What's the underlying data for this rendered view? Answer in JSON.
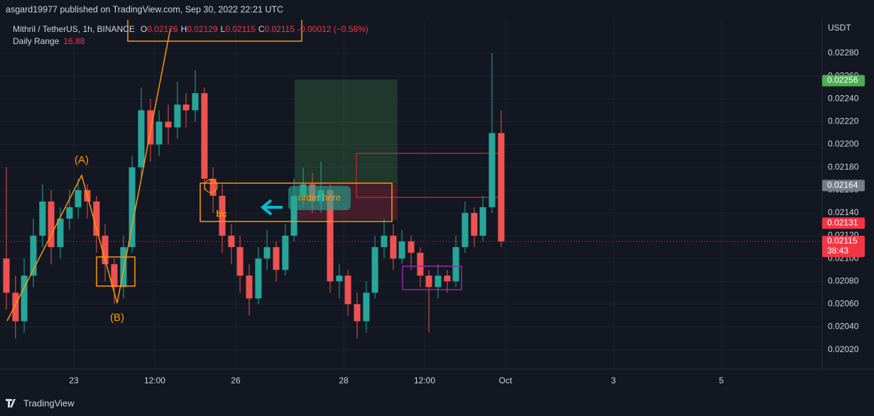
{
  "header": {
    "published": "asgard19977 published on TradingView.com, Sep 30, 2022 22:21 UTC"
  },
  "footer": {
    "brand": "TradingView"
  },
  "chart_data": {
    "type": "candlestick",
    "symbol": "Mithril / TetherUS, 1h, BINANCE",
    "ohlc_legend": [
      {
        "label": "O",
        "value": 0.02126
      },
      {
        "label": "H",
        "value": 0.02129
      },
      {
        "label": "L",
        "value": 0.02115
      },
      {
        "label": "C",
        "value": 0.02115
      }
    ],
    "change": "-0.00012 (−0.56%)",
    "indicator": {
      "name": "Daily Range",
      "value": 16.88
    },
    "currency": "USDT",
    "annotations": [
      "(A)",
      "(B)",
      "bc",
      "order here"
    ],
    "up_color": "#26a69a",
    "down_color": "#ef5350",
    "x": [
      21.75,
      21.92,
      22.08,
      22.25,
      22.42,
      22.58,
      22.75,
      22.92,
      23.08,
      23.25,
      23.42,
      23.58,
      23.75,
      23.92,
      24.08,
      24.25,
      24.42,
      24.58,
      24.75,
      24.92,
      25.08,
      25.25,
      25.42,
      25.58,
      25.75,
      25.92,
      26.08,
      26.25,
      26.42,
      26.58,
      26.75,
      26.92,
      27.08,
      27.25,
      27.42,
      27.58,
      27.75,
      27.92,
      28.08,
      28.25,
      28.42,
      28.58,
      28.75,
      28.92,
      29.08,
      29.25,
      29.42,
      29.58,
      29.75,
      29.92,
      30.08,
      30.25,
      30.42,
      30.58,
      30.75,
      30.92
    ],
    "open": [
      0.021,
      0.0207,
      0.02045,
      0.02085,
      0.0212,
      0.0215,
      0.0211,
      0.02135,
      0.02145,
      0.0216,
      0.0215,
      0.0212,
      0.02095,
      0.02075,
      0.0211,
      0.0218,
      0.0223,
      0.022,
      0.0222,
      0.02215,
      0.02235,
      0.0223,
      0.02245,
      0.0217,
      0.02155,
      0.0212,
      0.0211,
      0.02085,
      0.02065,
      0.021,
      0.0211,
      0.0209,
      0.0212,
      0.02155,
      0.02165,
      0.0215,
      0.0216,
      0.0208,
      0.02085,
      0.0206,
      0.02045,
      0.0207,
      0.0211,
      0.0212,
      0.021,
      0.02115,
      0.02105,
      0.02085,
      0.02075,
      0.02085,
      0.0208,
      0.0211,
      0.0214,
      0.0212,
      0.02145,
      0.0221
    ],
    "high": [
      0.0218,
      0.02085,
      0.021,
      0.02135,
      0.02165,
      0.0216,
      0.02145,
      0.0216,
      0.0217,
      0.02165,
      0.02155,
      0.0213,
      0.021,
      0.0212,
      0.0219,
      0.0225,
      0.0224,
      0.0223,
      0.02235,
      0.02255,
      0.02245,
      0.02265,
      0.0225,
      0.0218,
      0.02165,
      0.0213,
      0.0212,
      0.02095,
      0.0211,
      0.02125,
      0.02115,
      0.0213,
      0.0217,
      0.0218,
      0.02175,
      0.02185,
      0.02165,
      0.02095,
      0.0209,
      0.0207,
      0.0208,
      0.0212,
      0.02135,
      0.0213,
      0.02125,
      0.0212,
      0.0211,
      0.0209,
      0.02095,
      0.0209,
      0.0212,
      0.0215,
      0.02145,
      0.02155,
      0.0228,
      0.0223
    ],
    "low": [
      0.02055,
      0.0203,
      0.02035,
      0.02075,
      0.0211,
      0.02095,
      0.021,
      0.02125,
      0.02135,
      0.02135,
      0.02105,
      0.0208,
      0.0206,
      0.02065,
      0.02105,
      0.0217,
      0.02185,
      0.0219,
      0.022,
      0.02205,
      0.02215,
      0.0222,
      0.0216,
      0.0214,
      0.02105,
      0.02095,
      0.0207,
      0.0205,
      0.0206,
      0.0209,
      0.0208,
      0.02085,
      0.02115,
      0.02145,
      0.0214,
      0.0214,
      0.0207,
      0.02065,
      0.0205,
      0.0203,
      0.02035,
      0.02065,
      0.021,
      0.0209,
      0.02095,
      0.0209,
      0.02075,
      0.02035,
      0.02065,
      0.0207,
      0.02075,
      0.02105,
      0.0211,
      0.02115,
      0.0214,
      0.0211
    ],
    "close": [
      0.0207,
      0.02045,
      0.02085,
      0.0212,
      0.0215,
      0.0211,
      0.02135,
      0.02145,
      0.0216,
      0.0215,
      0.0212,
      0.02095,
      0.02075,
      0.0211,
      0.0218,
      0.0223,
      0.022,
      0.0222,
      0.02215,
      0.02235,
      0.0223,
      0.02245,
      0.0217,
      0.02155,
      0.0212,
      0.0211,
      0.02085,
      0.02065,
      0.021,
      0.0211,
      0.0209,
      0.0212,
      0.02155,
      0.02165,
      0.0215,
      0.0216,
      0.0208,
      0.02085,
      0.0206,
      0.02045,
      0.0207,
      0.0211,
      0.0212,
      0.021,
      0.02115,
      0.02105,
      0.02085,
      0.02075,
      0.02085,
      0.0208,
      0.0211,
      0.0214,
      0.0212,
      0.02145,
      0.0221,
      0.02115
    ],
    "xlim": [
      21.632,
      36.868
    ],
    "xticks": [
      23,
      {
        "value": 24.5,
        "label": "12:00"
      },
      26,
      28,
      {
        "value": 29.5,
        "label": "12:00"
      },
      {
        "value": 31,
        "label": "Oct"
      },
      {
        "value": 33,
        "label": "3"
      },
      {
        "value": 35,
        "label": "5"
      }
    ],
    "ylim": [
      0.02003,
      0.02313
    ],
    "yticks": [
      {
        "value": 0.0202,
        "label": "0.02020"
      },
      {
        "value": 0.0204,
        "label": "0.02040"
      },
      {
        "value": 0.0206,
        "label": "0.02060"
      },
      {
        "value": 0.0208,
        "label": "0.02080"
      },
      {
        "value": 0.021,
        "label": "0.02100"
      },
      {
        "value": 0.0212,
        "label": "0.02120"
      },
      {
        "value": 0.0214,
        "label": "0.02140"
      },
      {
        "value": 0.0216,
        "label": "0.02160"
      },
      {
        "value": 0.0218,
        "label": "0.02180"
      },
      {
        "value": 0.022,
        "label": "0.02200"
      },
      {
        "value": 0.0222,
        "label": "0.02220"
      },
      {
        "value": 0.0224,
        "label": "0.02240"
      },
      {
        "value": 0.0226,
        "label": "0.02260"
      },
      {
        "value": 0.0228,
        "label": "0.02280"
      }
    ],
    "grid": true,
    "price_tags": [
      {
        "value": 0.02256,
        "color": "#4caf50"
      },
      {
        "value": 0.02164,
        "color": "#787b86"
      },
      {
        "value": 0.02131,
        "color": "#f23645"
      },
      {
        "value": 0.02115,
        "color": "#f23645",
        "countdown": "38:43"
      }
    ]
  }
}
